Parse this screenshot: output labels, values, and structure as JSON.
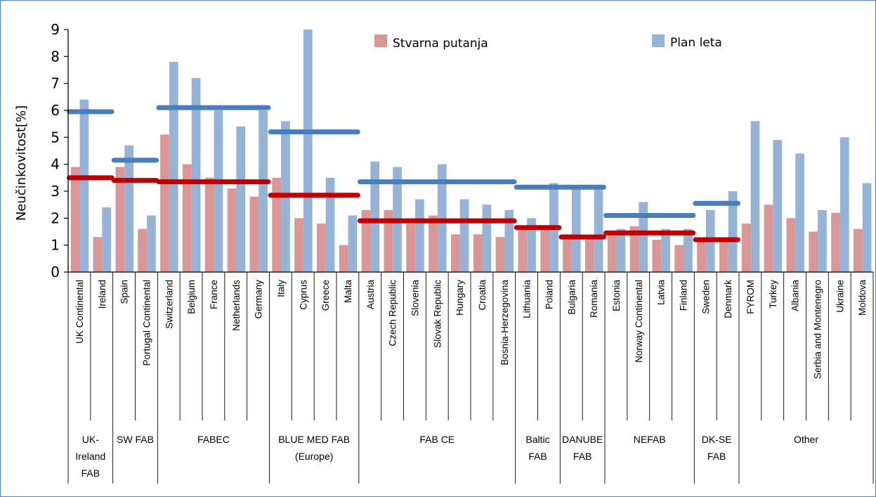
{
  "chart_data": {
    "type": "bar",
    "title": "",
    "ylabel": "Neučinkovitost[%]",
    "xlabel": "",
    "ylim": [
      0,
      9
    ],
    "yticks": [
      "0",
      "1",
      "2",
      "3",
      "4",
      "5",
      "6",
      "7",
      "8",
      "9"
    ],
    "legend_position": "top-center",
    "grid": false,
    "colors": {
      "actual": "#d99694",
      "plan": "#95b3d7",
      "plan_avg": "#4a7ebb",
      "actual_avg": "#c00000",
      "axis": "#000000",
      "frame": "#4f81bd"
    },
    "categories": [
      "UK Continental",
      "Ireland",
      "Spain",
      "Portugal Continental",
      "Switzerland",
      "Belgium",
      "France",
      "Netherlands",
      "Germany",
      "Italy",
      "Cyprus",
      "Greece",
      "Malta",
      "Austria",
      "Czech Republic",
      "Slovenia",
      "Slovak Republic",
      "Hungary",
      "Croatia",
      "Bosnia-Herzegovina",
      "Lithuania",
      "Poland",
      "Bulgaria",
      "Romania",
      "Estonia",
      "Norway Continental",
      "Latvia",
      "Finland",
      "Sweden",
      "Denmark",
      "FYROM",
      "Turkey",
      "Albania",
      "Serbia and Montenegro",
      "Ukraine",
      "Moldova"
    ],
    "series": [
      {
        "name": "Stvarna putanja",
        "key": "actual",
        "values": [
          3.9,
          1.3,
          3.9,
          1.6,
          5.1,
          4.0,
          3.5,
          3.1,
          2.8,
          3.5,
          2.0,
          1.8,
          1.0,
          2.3,
          2.3,
          1.8,
          2.1,
          1.4,
          1.4,
          1.3,
          1.7,
          1.6,
          1.4,
          1.3,
          1.4,
          1.7,
          1.2,
          1.0,
          1.2,
          1.2,
          1.8,
          2.5,
          2.0,
          1.5,
          2.2,
          1.6
        ]
      },
      {
        "name": "Plan leta",
        "key": "plan",
        "values": [
          6.4,
          2.4,
          4.7,
          2.1,
          7.8,
          7.2,
          6.0,
          5.4,
          6.0,
          5.6,
          9.0,
          3.5,
          2.1,
          4.1,
          3.9,
          2.7,
          4.0,
          2.7,
          2.5,
          2.3,
          2.0,
          3.3,
          3.1,
          3.1,
          1.6,
          2.6,
          1.6,
          1.6,
          2.3,
          3.0,
          5.6,
          4.9,
          4.4,
          2.3,
          5.0,
          3.3
        ]
      }
    ],
    "groups": [
      {
        "label_lines": [
          "UK-",
          "Ireland",
          "FAB"
        ],
        "members": [
          "UK Continental",
          "Ireland"
        ],
        "plan_avg": 5.95,
        "actual_avg": 3.5
      },
      {
        "label_lines": [
          "SW FAB"
        ],
        "members": [
          "Spain",
          "Portugal Continental"
        ],
        "plan_avg": 4.15,
        "actual_avg": 3.4
      },
      {
        "label_lines": [
          "FABEC"
        ],
        "members": [
          "Switzerland",
          "Belgium",
          "France",
          "Netherlands",
          "Germany"
        ],
        "plan_avg": 6.1,
        "actual_avg": 3.35
      },
      {
        "label_lines": [
          "BLUE MED FAB",
          "(Europe)"
        ],
        "members": [
          "Italy",
          "Cyprus",
          "Greece",
          "Malta"
        ],
        "plan_avg": 5.2,
        "actual_avg": 2.85
      },
      {
        "label_lines": [
          "FAB CE"
        ],
        "members": [
          "Austria",
          "Czech Republic",
          "Slovenia",
          "Slovak Republic",
          "Hungary",
          "Croatia",
          "Bosnia-Herzegovina"
        ],
        "plan_avg": 3.35,
        "actual_avg": 1.9
      },
      {
        "label_lines": [
          "Baltic",
          "FAB"
        ],
        "members": [
          "Lithuania",
          "Poland"
        ],
        "plan_avg": 3.15,
        "actual_avg": 1.65
      },
      {
        "label_lines": [
          "DANUBE",
          "FAB"
        ],
        "members": [
          "Bulgaria",
          "Romania"
        ],
        "plan_avg": 3.15,
        "actual_avg": 1.3
      },
      {
        "label_lines": [
          "NEFAB"
        ],
        "members": [
          "Estonia",
          "Norway Continental",
          "Latvia",
          "Finland"
        ],
        "plan_avg": 2.1,
        "actual_avg": 1.45
      },
      {
        "label_lines": [
          "DK-SE",
          "FAB"
        ],
        "members": [
          "Sweden",
          "Denmark"
        ],
        "plan_avg": 2.55,
        "actual_avg": 1.2
      },
      {
        "label_lines": [
          "Other"
        ],
        "members": [
          "FYROM",
          "Turkey",
          "Albania",
          "Serbia and Montenegro",
          "Ukraine",
          "Moldova"
        ]
      }
    ]
  }
}
